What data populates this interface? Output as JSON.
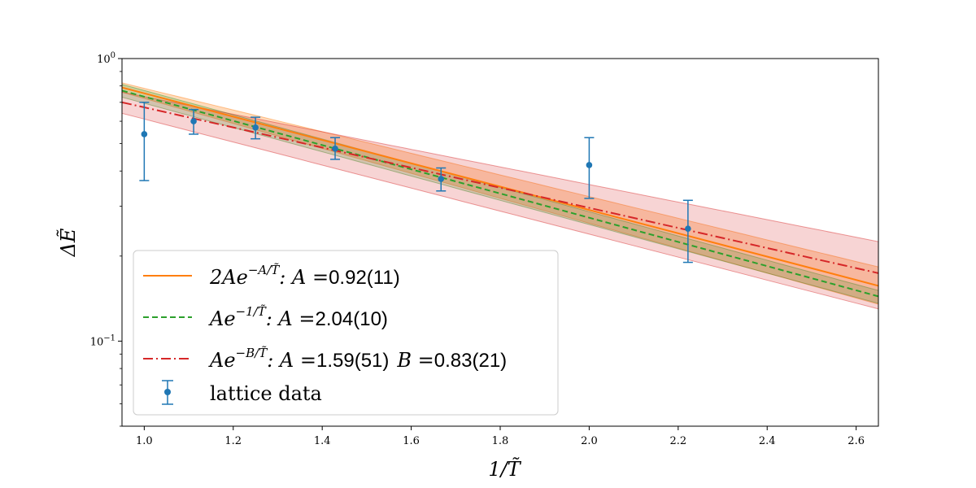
{
  "chart_data": {
    "type": "line",
    "xlabel": "1/T̃",
    "ylabel": "ΔẼ",
    "xlim": [
      0.95,
      2.65
    ],
    "ylim": [
      0.05,
      1.0
    ],
    "yscale": "log",
    "xticks": [
      1.0,
      1.2,
      1.4,
      1.6,
      1.8,
      2.0,
      2.2,
      2.4,
      2.6
    ],
    "xtick_labels": [
      "1.0",
      "1.2",
      "1.4",
      "1.6",
      "1.8",
      "2.0",
      "2.2",
      "2.4",
      "2.6"
    ],
    "yticks": [
      {
        "value": 1.0,
        "base": "10",
        "exp": "0"
      },
      {
        "value": 0.1,
        "base": "10",
        "exp": "−1"
      }
    ],
    "legend_position": "lower-left",
    "lattice": {
      "name": "lattice data",
      "color": "#1f77b4",
      "points": [
        {
          "x": 1.0,
          "y": 0.54,
          "ylo": 0.37,
          "yhi": 0.7
        },
        {
          "x": 1.111,
          "y": 0.6,
          "ylo": 0.54,
          "yhi": 0.66
        },
        {
          "x": 1.25,
          "y": 0.57,
          "ylo": 0.52,
          "yhi": 0.62
        },
        {
          "x": 1.429,
          "y": 0.48,
          "ylo": 0.44,
          "yhi": 0.525
        },
        {
          "x": 1.667,
          "y": 0.375,
          "ylo": 0.34,
          "yhi": 0.41
        },
        {
          "x": 2.0,
          "y": 0.42,
          "ylo": 0.32,
          "yhi": 0.525
        },
        {
          "x": 2.222,
          "y": 0.25,
          "ylo": 0.19,
          "yhi": 0.315
        }
      ]
    },
    "fits": [
      {
        "key": "fit1",
        "color": "#ff7f0e",
        "dash": "",
        "band_color": "#ff7f0e",
        "band_opacity": 0.28,
        "formula_prefix": "2Ae",
        "formula_exp": "−A/T̃",
        "label_params": ": A =",
        "value_text": "0.92(11)",
        "extra_label": "",
        "extra_value": "",
        "x": [
          0.95,
          2.65
        ],
        "y": [
          0.79,
          0.157
        ],
        "band_lo": [
          0.76,
          0.135
        ],
        "band_hi": [
          0.82,
          0.183
        ]
      },
      {
        "key": "fit2",
        "color": "#2ca02c",
        "dash": "7,4",
        "band_color": "#2ca02c",
        "band_opacity": 0.22,
        "formula_prefix": "Ae",
        "formula_exp": "−1/T̃",
        "label_params": ": A =",
        "value_text": "2.04(10)",
        "extra_label": "",
        "extra_value": "",
        "x": [
          0.95,
          2.65
        ],
        "y": [
          0.77,
          0.144
        ],
        "band_lo": [
          0.73,
          0.136
        ],
        "band_hi": [
          0.81,
          0.151
        ]
      },
      {
        "key": "fit3",
        "color": "#d62728",
        "dash": "12,4,2,4",
        "band_color": "#d62728",
        "band_opacity": 0.2,
        "formula_prefix": "Ae",
        "formula_exp": "−B/T̃",
        "label_params": ": A =",
        "value_text": "1.59(51)",
        "extra_label": "B =",
        "extra_value": "0.83(21)",
        "x": [
          0.95,
          2.65
        ],
        "y": [
          0.7,
          0.174
        ],
        "band_lo": [
          0.64,
          0.13
        ],
        "band_hi": [
          0.76,
          0.225
        ]
      }
    ]
  }
}
